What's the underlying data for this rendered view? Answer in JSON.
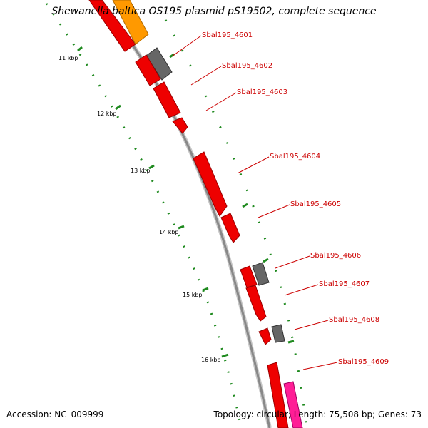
{
  "title": "Shewanella baltica OS195 plasmid pS19502, complete sequence",
  "accession": "Accession: NC_009999",
  "summary": "Topology: circular; Length: 75,508 bp; Genes: 73",
  "colors": {
    "cds": "#ee0000",
    "other_feature": "#666666",
    "highlight_orange": "#ff9900",
    "highlight_pink": "#ff1e96",
    "backbone": "#888888",
    "tick": "#1f8a1f",
    "label": "#cc0000"
  },
  "kbp_markers": [
    "11 kbp",
    "12 kbp",
    "13 kbp",
    "14 kbp",
    "15 kbp",
    "16 kbp"
  ],
  "genes": [
    "Sbal195_4601",
    "Sbal195_4602",
    "Sbal195_4603",
    "Sbal195_4604",
    "Sbal195_4605",
    "Sbal195_4606",
    "Sbal195_4607",
    "Sbal195_4608",
    "Sbal195_4609"
  ]
}
